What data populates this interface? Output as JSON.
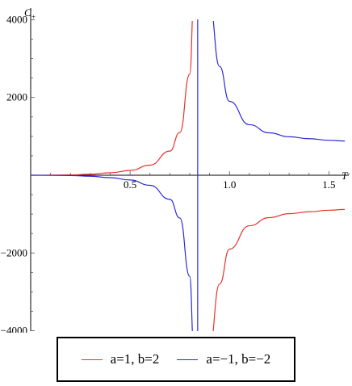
{
  "chart_data": {
    "type": "line",
    "xlabel": "T",
    "ylabel": "C+",
    "ylabel_main": "C",
    "ylabel_sub": "+",
    "xlim": [
      0,
      1.6
    ],
    "ylim": [
      -4300,
      4300
    ],
    "xticks": [
      0.5,
      1.0,
      1.5
    ],
    "xtick_labels": [
      "0.5",
      "1.0",
      "1.5"
    ],
    "yticks": [
      -4000,
      -2000,
      2000,
      4000
    ],
    "ytick_labels": [
      "−4000",
      "−2000",
      "2000",
      "4000"
    ],
    "asymptote_x": 0.84,
    "grid": false,
    "legend_position": "bottom",
    "series": [
      {
        "name": "a=1, b=2",
        "color": "#e8322f",
        "x": [
          0.0,
          0.2,
          0.3,
          0.4,
          0.5,
          0.6,
          0.7,
          0.75,
          0.8,
          0.82,
          0.9,
          0.95,
          1.0,
          1.1,
          1.2,
          1.3,
          1.4,
          1.5,
          1.58
        ],
        "y": [
          0,
          8,
          26,
          62,
          122,
          260,
          620,
          1100,
          2600,
          4400,
          -4400,
          -2800,
          -1900,
          -1300,
          -1090,
          -990,
          -940,
          -900,
          -880
        ]
      },
      {
        "name": "a=−1, b=−2",
        "color": "#2a2ad8",
        "x": [
          0.0,
          0.2,
          0.3,
          0.4,
          0.5,
          0.6,
          0.7,
          0.75,
          0.8,
          0.82,
          0.9,
          0.95,
          1.0,
          1.1,
          1.2,
          1.3,
          1.4,
          1.5,
          1.58
        ],
        "y": [
          0,
          -8,
          -26,
          -62,
          -122,
          -260,
          -620,
          -1100,
          -2600,
          -4400,
          4400,
          2800,
          1900,
          1300,
          1090,
          990,
          940,
          900,
          880
        ]
      }
    ]
  }
}
